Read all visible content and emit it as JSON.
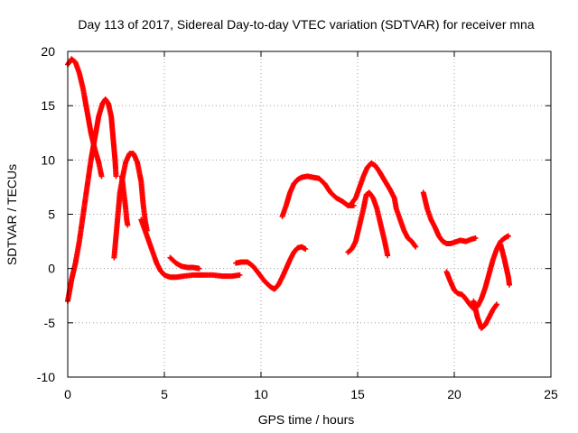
{
  "chart_data": {
    "type": "scatter",
    "title": "Day 113 of 2017, Sidereal Day-to-day VTEC variation (SDTVAR) for receiver mna",
    "xlabel": "GPS time / hours",
    "ylabel": "SDTVAR / TECUs",
    "xlim": [
      0,
      25
    ],
    "ylim": [
      -10,
      20
    ],
    "grid": true,
    "x_ticks": [
      0,
      5,
      10,
      15,
      20,
      25
    ],
    "x_tick_labels": [
      "0",
      "5",
      "10",
      "15",
      "20",
      "25"
    ],
    "y_ticks": [
      -10,
      -5,
      0,
      5,
      10,
      15,
      20
    ],
    "y_tick_labels": [
      "-10",
      "-5",
      "0",
      "5",
      "10",
      "15",
      "20"
    ],
    "marker": "+",
    "color": "#ff0000",
    "series": [
      {
        "name": "trace-1",
        "points": [
          [
            0.0,
            18.8
          ],
          [
            0.2,
            19.3
          ],
          [
            0.4,
            19.0
          ],
          [
            0.6,
            18.0
          ],
          [
            0.8,
            16.5
          ],
          [
            1.0,
            14.5
          ],
          [
            1.2,
            12.5
          ],
          [
            1.4,
            11.0
          ],
          [
            1.6,
            9.8
          ],
          [
            1.75,
            8.5
          ]
        ]
      },
      {
        "name": "trace-2",
        "points": [
          [
            0.0,
            -3.0
          ],
          [
            0.2,
            -1.0
          ],
          [
            0.4,
            0.5
          ],
          [
            0.6,
            2.5
          ],
          [
            0.8,
            5.0
          ],
          [
            1.0,
            7.5
          ],
          [
            1.2,
            10.0
          ],
          [
            1.4,
            12.0
          ],
          [
            1.6,
            14.0
          ],
          [
            1.8,
            15.2
          ],
          [
            1.95,
            15.6
          ],
          [
            2.1,
            15.2
          ],
          [
            2.25,
            14.0
          ],
          [
            2.35,
            12.0
          ],
          [
            2.45,
            10.0
          ],
          [
            2.5,
            8.5
          ]
        ]
      },
      {
        "name": "trace-3",
        "points": [
          [
            2.4,
            1.0
          ],
          [
            2.5,
            3.0
          ],
          [
            2.6,
            5.0
          ],
          [
            2.7,
            7.0
          ],
          [
            2.85,
            8.5
          ],
          [
            3.0,
            9.8
          ],
          [
            3.2,
            10.6
          ],
          [
            3.4,
            10.6
          ],
          [
            3.6,
            9.8
          ],
          [
            3.8,
            8.0
          ],
          [
            3.9,
            6.0
          ],
          [
            4.0,
            4.5
          ],
          [
            4.1,
            3.5
          ]
        ]
      },
      {
        "name": "trace-4",
        "points": [
          [
            2.8,
            8.5
          ],
          [
            2.9,
            7.0
          ],
          [
            3.0,
            5.5
          ],
          [
            3.05,
            4.5
          ],
          [
            3.1,
            4.0
          ]
        ]
      },
      {
        "name": "trace-5",
        "points": [
          [
            3.8,
            4.5
          ],
          [
            4.0,
            3.5
          ],
          [
            4.2,
            2.5
          ],
          [
            4.4,
            1.5
          ],
          [
            4.6,
            0.5
          ],
          [
            4.8,
            -0.2
          ],
          [
            5.0,
            -0.6
          ],
          [
            5.3,
            -0.8
          ],
          [
            5.6,
            -0.8
          ],
          [
            6.0,
            -0.7
          ],
          [
            6.5,
            -0.6
          ],
          [
            7.0,
            -0.6
          ],
          [
            7.5,
            -0.6
          ],
          [
            8.0,
            -0.7
          ],
          [
            8.5,
            -0.7
          ],
          [
            8.9,
            -0.6
          ]
        ]
      },
      {
        "name": "trace-6",
        "points": [
          [
            5.3,
            1.0
          ],
          [
            5.6,
            0.5
          ],
          [
            5.9,
            0.2
          ],
          [
            6.2,
            0.1
          ],
          [
            6.5,
            0.1
          ],
          [
            6.8,
            0.0
          ]
        ]
      },
      {
        "name": "trace-7",
        "points": [
          [
            8.7,
            0.5
          ],
          [
            9.0,
            0.6
          ],
          [
            9.3,
            0.6
          ],
          [
            9.6,
            0.2
          ],
          [
            9.9,
            -0.5
          ],
          [
            10.2,
            -1.2
          ],
          [
            10.5,
            -1.7
          ],
          [
            10.7,
            -1.9
          ],
          [
            10.9,
            -1.5
          ],
          [
            11.1,
            -0.8
          ],
          [
            11.3,
            0.0
          ],
          [
            11.5,
            0.8
          ],
          [
            11.7,
            1.5
          ],
          [
            11.9,
            1.9
          ],
          [
            12.1,
            2.0
          ],
          [
            12.3,
            1.8
          ]
        ]
      },
      {
        "name": "trace-8",
        "points": [
          [
            11.1,
            4.8
          ],
          [
            11.3,
            5.8
          ],
          [
            11.5,
            7.0
          ],
          [
            11.7,
            7.8
          ],
          [
            11.9,
            8.2
          ],
          [
            12.1,
            8.4
          ],
          [
            12.4,
            8.5
          ],
          [
            12.7,
            8.4
          ],
          [
            13.0,
            8.3
          ],
          [
            13.3,
            7.8
          ],
          [
            13.6,
            7.0
          ],
          [
            13.9,
            6.5
          ],
          [
            14.2,
            6.2
          ],
          [
            14.5,
            5.8
          ],
          [
            14.8,
            5.8
          ]
        ]
      },
      {
        "name": "trace-9",
        "points": [
          [
            14.6,
            5.8
          ],
          [
            14.9,
            6.5
          ],
          [
            15.1,
            7.5
          ],
          [
            15.3,
            8.5
          ],
          [
            15.5,
            9.3
          ],
          [
            15.7,
            9.7
          ],
          [
            15.9,
            9.5
          ],
          [
            16.1,
            9.0
          ],
          [
            16.3,
            8.4
          ],
          [
            16.5,
            7.8
          ],
          [
            16.7,
            7.2
          ],
          [
            16.9,
            6.5
          ],
          [
            17.0,
            5.5
          ],
          [
            17.2,
            4.5
          ],
          [
            17.4,
            3.5
          ],
          [
            17.6,
            2.8
          ],
          [
            17.8,
            2.5
          ],
          [
            18.0,
            2.0
          ]
        ]
      },
      {
        "name": "trace-10",
        "points": [
          [
            14.5,
            1.5
          ],
          [
            14.7,
            1.8
          ],
          [
            14.9,
            2.5
          ],
          [
            15.1,
            4.0
          ],
          [
            15.3,
            5.5
          ],
          [
            15.45,
            6.8
          ],
          [
            15.6,
            7.0
          ],
          [
            15.8,
            6.5
          ],
          [
            16.0,
            5.5
          ],
          [
            16.2,
            4.0
          ],
          [
            16.4,
            2.5
          ],
          [
            16.55,
            1.2
          ]
        ]
      },
      {
        "name": "trace-11",
        "points": [
          [
            18.4,
            7.0
          ],
          [
            18.6,
            5.5
          ],
          [
            18.8,
            4.5
          ],
          [
            19.0,
            3.8
          ],
          [
            19.2,
            3.0
          ],
          [
            19.4,
            2.5
          ],
          [
            19.6,
            2.3
          ],
          [
            19.8,
            2.3
          ],
          [
            20.0,
            2.4
          ],
          [
            20.3,
            2.6
          ],
          [
            20.6,
            2.5
          ],
          [
            20.9,
            2.7
          ],
          [
            21.1,
            2.8
          ]
        ]
      },
      {
        "name": "trace-12",
        "points": [
          [
            19.6,
            -0.3
          ],
          [
            19.8,
            -1.2
          ],
          [
            20.0,
            -2.0
          ],
          [
            20.2,
            -2.3
          ],
          [
            20.4,
            -2.4
          ],
          [
            20.6,
            -2.8
          ],
          [
            20.8,
            -3.3
          ],
          [
            21.0,
            -3.7
          ],
          [
            21.2,
            -3.5
          ],
          [
            21.4,
            -2.8
          ],
          [
            21.6,
            -1.8
          ],
          [
            21.8,
            -0.5
          ],
          [
            22.0,
            0.8
          ],
          [
            22.2,
            1.8
          ],
          [
            22.4,
            2.5
          ],
          [
            22.6,
            2.8
          ],
          [
            22.8,
            3.0
          ]
        ]
      },
      {
        "name": "trace-13",
        "points": [
          [
            21.0,
            -3.0
          ],
          [
            21.2,
            -4.5
          ],
          [
            21.4,
            -5.5
          ],
          [
            21.6,
            -5.2
          ],
          [
            21.8,
            -4.5
          ],
          [
            22.0,
            -3.8
          ],
          [
            22.2,
            -3.3
          ]
        ]
      },
      {
        "name": "trace-14",
        "points": [
          [
            22.4,
            2.2
          ],
          [
            22.5,
            1.5
          ],
          [
            22.6,
            0.8
          ],
          [
            22.7,
            0.0
          ],
          [
            22.8,
            -0.8
          ],
          [
            22.85,
            -1.5
          ]
        ]
      }
    ]
  }
}
